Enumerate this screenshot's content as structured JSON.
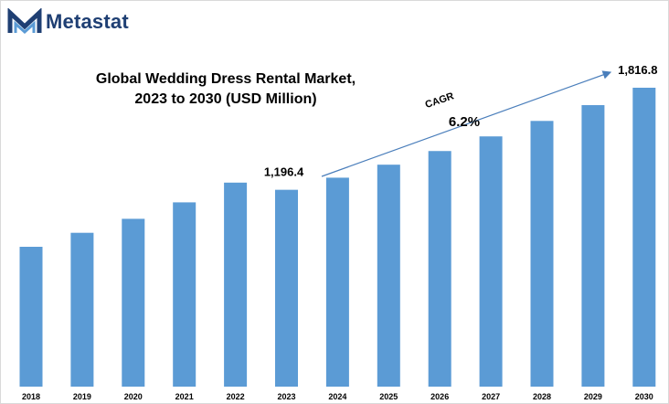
{
  "brand": {
    "name": "Metastat"
  },
  "colors": {
    "bar": "#5b9bd5",
    "arrow": "#4a7ebb",
    "brand_text": "#1f3f73",
    "brand_mark": "#1f3f73"
  },
  "chart_data": {
    "type": "bar",
    "title_lines": [
      "Global Wedding Dress Rental Market,",
      "2023 to 2030 (USD Million)"
    ],
    "xlabel": "",
    "ylabel": "",
    "categories": [
      "2018",
      "2019",
      "2020",
      "2021",
      "2022",
      "2023",
      "2024",
      "2025",
      "2026",
      "2027",
      "2028",
      "2029",
      "2030"
    ],
    "values": [
      850,
      935,
      1020,
      1120,
      1240,
      1196.4,
      1270,
      1349,
      1432,
      1521,
      1615,
      1711,
      1816.8
    ],
    "ylim": [
      0,
      2200
    ],
    "grid": false,
    "legend": "none",
    "data_labels": [
      {
        "category": "2023",
        "text": "1,196.4"
      },
      {
        "category": "2030",
        "text": "1,816.8"
      }
    ],
    "annotation": {
      "label": "CAGR",
      "value": "6.2%",
      "from": "2023",
      "to": "2030"
    }
  }
}
